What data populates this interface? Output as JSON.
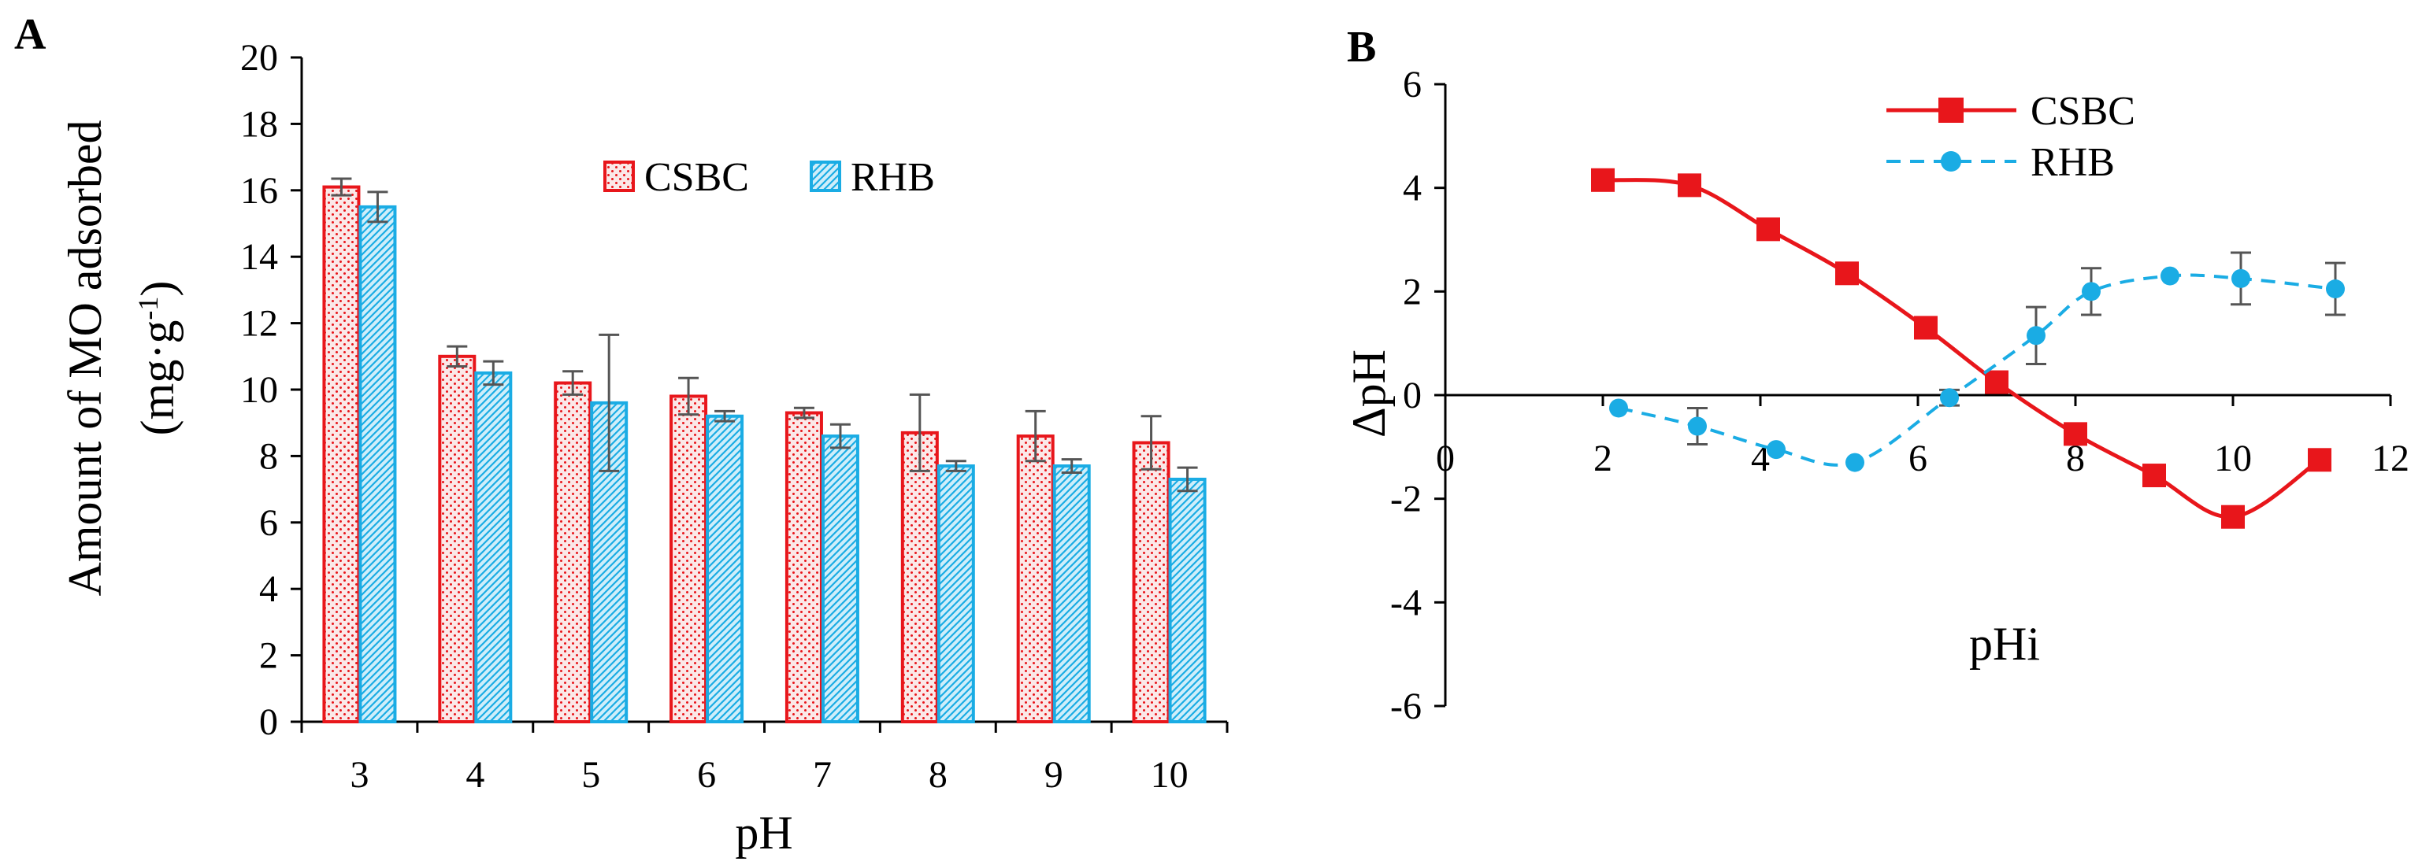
{
  "chart_data": [
    {
      "type": "bar",
      "panel_label": "A",
      "categories": [
        "3",
        "4",
        "5",
        "6",
        "7",
        "8",
        "9",
        "10"
      ],
      "series": [
        {
          "name": "CSBC",
          "values": [
            16.1,
            11.0,
            10.2,
            9.8,
            9.3,
            8.7,
            8.6,
            8.4
          ],
          "errors": [
            0.25,
            0.3,
            0.35,
            0.55,
            0.15,
            1.15,
            0.75,
            0.8
          ],
          "color": "#e8161b",
          "fill": "#f6d4d4"
        },
        {
          "name": "RHB",
          "values": [
            15.5,
            10.5,
            9.6,
            9.2,
            8.6,
            7.7,
            7.7,
            7.3
          ],
          "errors": [
            0.45,
            0.35,
            2.05,
            0.15,
            0.35,
            0.15,
            0.2,
            0.35
          ],
          "color": "#1aace4",
          "fill": "#a9def5"
        }
      ],
      "xlabel": "pH",
      "ylabel_line1": "Amount of MO adsorbed",
      "ylabel_line2_main": "(mg·g",
      "ylabel_line2_sup": "-1",
      "ylabel_line2_end": ")",
      "ylim": [
        0,
        20
      ],
      "yticks": [
        "0",
        "2",
        "4",
        "6",
        "8",
        "10",
        "12",
        "14",
        "16",
        "18",
        "20"
      ],
      "legend_position": "top-right"
    },
    {
      "type": "line",
      "panel_label": "B",
      "series": [
        {
          "name": "CSBC",
          "color": "#e8161b",
          "marker": "square",
          "line_style": "solid",
          "x": [
            2.0,
            3.1,
            4.1,
            5.1,
            6.1,
            7.0,
            8.0,
            9.0,
            10.0,
            11.1
          ],
          "y": [
            4.15,
            4.05,
            3.2,
            2.35,
            1.3,
            0.25,
            -0.75,
            -1.55,
            -2.35,
            -1.25
          ],
          "errors": [
            0,
            0,
            0,
            0,
            0,
            0,
            0,
            0,
            0.15,
            0
          ]
        },
        {
          "name": "RHB",
          "color": "#1aace4",
          "marker": "circle",
          "line_style": "dashed",
          "x": [
            2.2,
            3.2,
            4.2,
            5.2,
            6.4,
            7.5,
            8.2,
            9.2,
            10.1,
            11.3
          ],
          "y": [
            -0.25,
            -0.6,
            -1.05,
            -1.3,
            -0.05,
            1.15,
            2.0,
            2.3,
            2.25,
            2.05
          ],
          "errors": [
            0,
            0.35,
            0,
            0,
            0.15,
            0.55,
            0.45,
            0,
            0.5,
            0.5
          ]
        }
      ],
      "xlabel": "pHi",
      "ylabel": "ΔpH",
      "xlim": [
        0,
        12
      ],
      "ylim": [
        -6,
        6
      ],
      "xticks": [
        "0",
        "2",
        "4",
        "6",
        "8",
        "10",
        "12"
      ],
      "yticks": [
        "-6",
        "-4",
        "-2",
        "0",
        "2",
        "4",
        "6"
      ],
      "legend_position": "top-right"
    }
  ]
}
